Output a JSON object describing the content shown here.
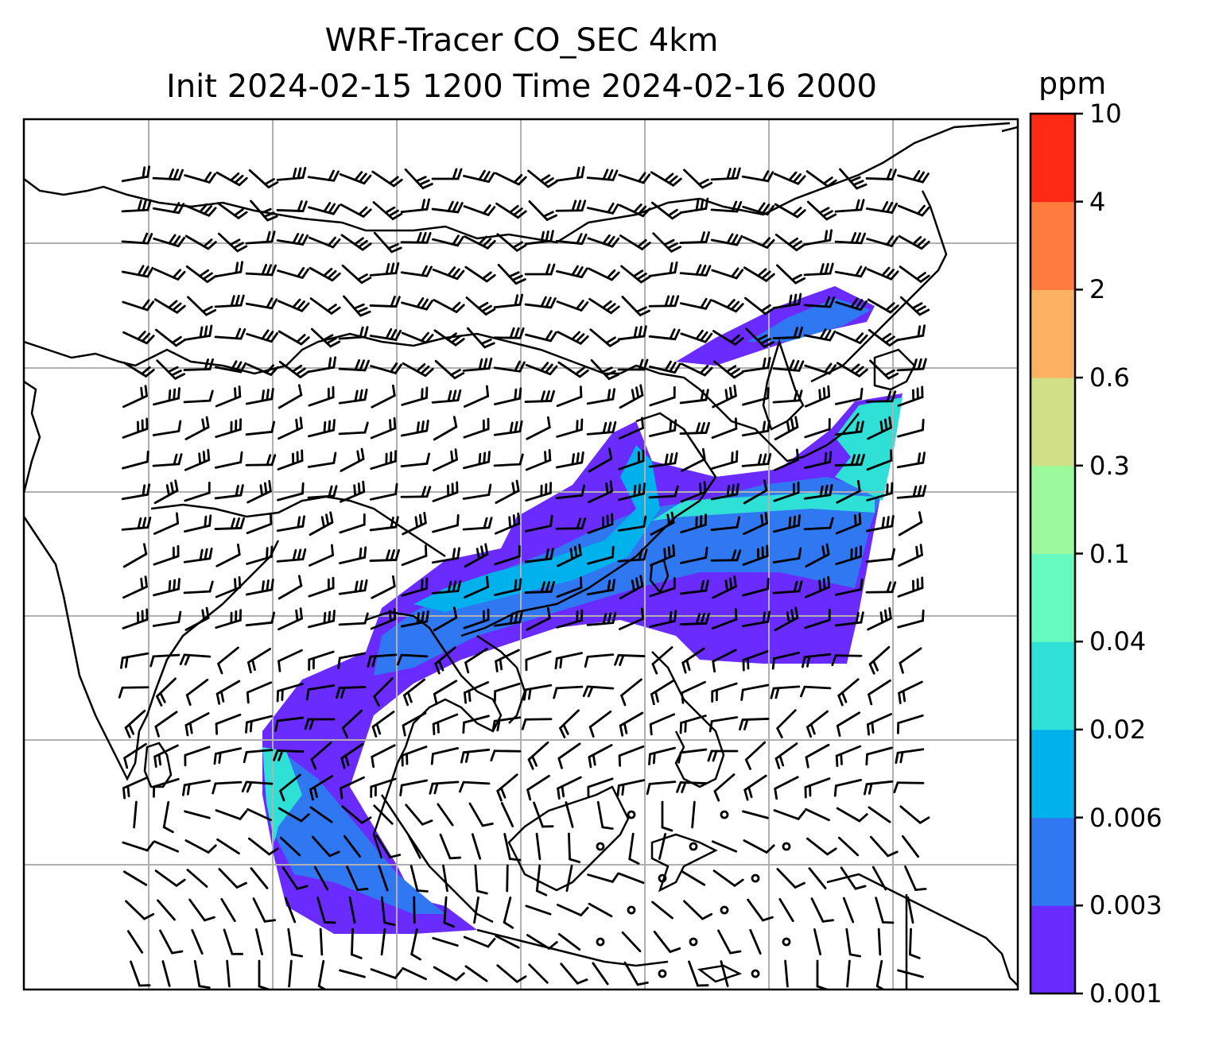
{
  "title_line1": "WRF-Tracer CO_SEC 4km",
  "title_line2": "Init 2024-02-15 1200 Time 2024-02-16 2000",
  "colorbar": {
    "unit": "ppm",
    "ticks": [
      "0.001",
      "0.003",
      "0.006",
      "0.02",
      "0.04",
      "0.1",
      "0.3",
      "0.6",
      "2",
      "4",
      "10"
    ],
    "colors": [
      "#6a2bff",
      "#3077f2",
      "#00b1ec",
      "#2ee0d6",
      "#66f9c0",
      "#9bf99c",
      "#d1e087",
      "#fdb261",
      "#ff7b3e",
      "#ff2a14"
    ]
  },
  "map": {
    "gridline_color": "#b0b0b0",
    "coastline_color": "#000000",
    "wind_barb_color": "#000000"
  }
}
